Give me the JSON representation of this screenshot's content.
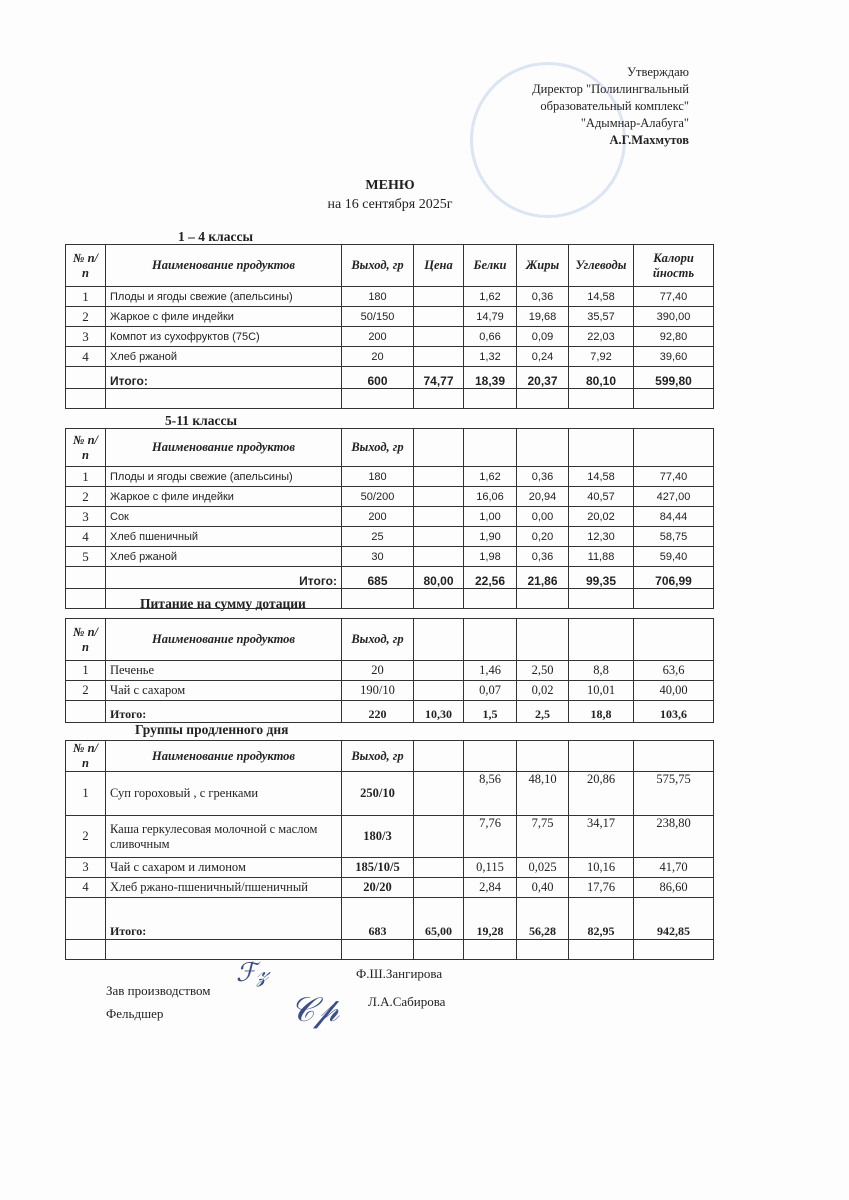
{
  "approval": {
    "line1": "Утверждаю",
    "line2": "Директор \"Полилингвальный",
    "line3": "образовательный комплекс\"",
    "line4": "\"Адымнар-Алабуга\"",
    "name": "А.Г.Махмутов"
  },
  "title": "МЕНЮ",
  "date": "на 16 сентября  2025г",
  "headers": {
    "num": "№ п/п",
    "name": "Наименование продуктов",
    "yield": "Выход, гр",
    "price": "Цена",
    "protein": "Белки",
    "fat": "Жиры",
    "carbs": "Углеводы",
    "kcal": "Калори йность"
  },
  "sections": [
    {
      "title": "1 – 4 классы",
      "full_header": true,
      "rows": [
        [
          "1",
          "Плоды и ягоды свежие (апельсины)",
          "180",
          "",
          "1,62",
          "0,36",
          "14,58",
          "77,40"
        ],
        [
          "2",
          "Жаркое с филе индейки",
          "50/150",
          "",
          "14,79",
          "19,68",
          "35,57",
          "390,00"
        ],
        [
          "3",
          "Компот из сухофруктов (75С)",
          "200",
          "",
          "0,66",
          "0,09",
          "22,03",
          "92,80"
        ],
        [
          "4",
          "Хлеб ржаной",
          "20",
          "",
          "1,32",
          "0,24",
          "7,92",
          "39,60"
        ]
      ],
      "total": [
        "",
        "Итого:",
        "600",
        "74,77",
        "18,39",
        "20,37",
        "80,10",
        "599,80"
      ]
    },
    {
      "title": "5-11 классы",
      "full_header": false,
      "rows": [
        [
          "1",
          "Плоды и ягоды свежие (апельсины)",
          "180",
          "",
          "1,62",
          "0,36",
          "14,58",
          "77,40"
        ],
        [
          "2",
          "Жаркое с филе индейки",
          "50/200",
          "",
          "16,06",
          "20,94",
          "40,57",
          "427,00"
        ],
        [
          "3",
          "Сок",
          "200",
          "",
          "1,00",
          "0,00",
          "20,02",
          "84,44"
        ],
        [
          "4",
          "Хлеб пшеничный",
          "25",
          "",
          "1,90",
          "0,20",
          "12,30",
          "58,75"
        ],
        [
          "5",
          "Хлеб ржаной",
          "30",
          "",
          "1,98",
          "0,36",
          "11,88",
          "59,40"
        ]
      ],
      "total": [
        "",
        "Итого:",
        "685",
        "80,00",
        "22,56",
        "21,86",
        "99,35",
        "706,99"
      ]
    },
    {
      "title": "Питание на сумму дотации",
      "full_header": false,
      "rows": [
        [
          "1",
          "Печенье",
          "20",
          "",
          "1,46",
          "2,50",
          "8,8",
          "63,6"
        ],
        [
          "2",
          "Чай с сахаром",
          "190/10",
          "",
          "0,07",
          "0,02",
          "10,01",
          "40,00"
        ]
      ],
      "total": [
        "",
        "Итого:",
        "220",
        "10,30",
        "1,5",
        "2,5",
        "18,8",
        "103,6"
      ]
    },
    {
      "title": "Группы продленного дня",
      "full_header": false,
      "rows": [
        [
          "1",
          "Суп гороховый , с гренками",
          "250/10",
          "",
          "8,56",
          "48,10",
          "20,86",
          "575,75"
        ],
        [
          "2",
          "Каша геркулесовая молочной с маслом сливочным",
          "180/3",
          "",
          "7,76",
          "7,75",
          "34,17",
          "238,80"
        ],
        [
          "3",
          "Чай с сахаром и лимоном",
          "185/10/5",
          "",
          "0,115",
          "0,025",
          "10,16",
          "41,70"
        ],
        [
          "4",
          "Хлеб ржано-пшеничный/пшеничный",
          "20/20",
          "",
          "2,84",
          "0,40",
          "17,76",
          "86,60"
        ]
      ],
      "total": [
        "",
        "Итого:",
        "683",
        "65,00",
        "19,28",
        "56,28",
        "82,95",
        "942,85"
      ]
    }
  ],
  "signatures": [
    {
      "role": "Зав производством",
      "name": "Ф.Ш.Зангирова"
    },
    {
      "role": "Фельдшер",
      "name": "Л.А.Сабирова"
    }
  ]
}
